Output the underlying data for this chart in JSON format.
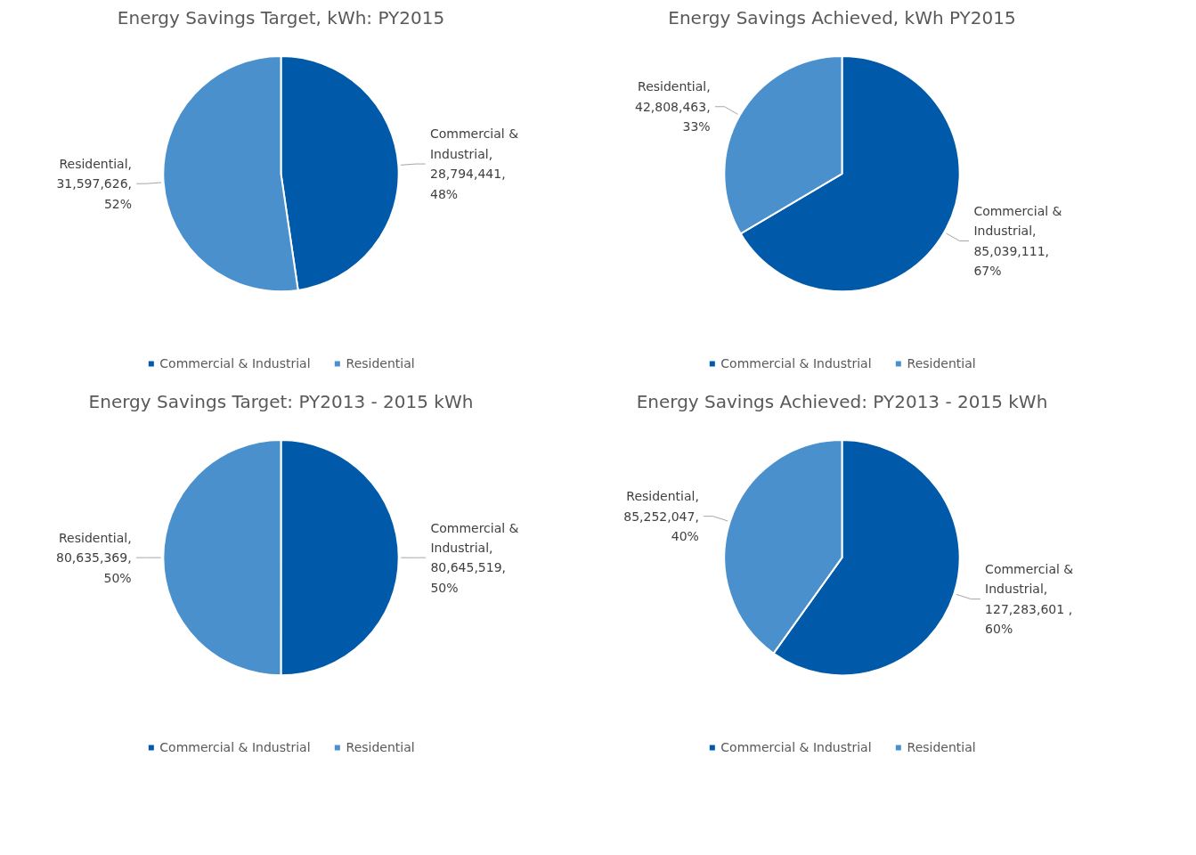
{
  "chart_data": [
    {
      "type": "pie",
      "title": "Energy Savings Target, kWh: PY2015",
      "categories": [
        "Commercial & Industrial",
        "Residential"
      ],
      "values": [
        28794441,
        31597626
      ],
      "colors": [
        "#005aa9",
        "#4a90cd"
      ],
      "value_labels": [
        "Commercial & Industrial, 28,794,441, 48%",
        "Residential, 31,597,626, 52%"
      ],
      "legend": "bottom"
    },
    {
      "type": "pie",
      "title": "Energy Savings Achieved, kWh PY2015",
      "categories": [
        "Commercial & Industrial",
        "Residential"
      ],
      "values": [
        85039111,
        42808463
      ],
      "colors": [
        "#005aa9",
        "#4a90cd"
      ],
      "value_labels": [
        "Commercial & Industrial, 85,039,111, 67%",
        "Residential, 42,808,463, 33%"
      ],
      "legend": "bottom"
    },
    {
      "type": "pie",
      "title": "Energy Savings Target: PY2013 - 2015 kWh",
      "categories": [
        "Commercial & Industrial",
        "Residential"
      ],
      "values": [
        80645519,
        80635369
      ],
      "colors": [
        "#005aa9",
        "#4a90cd"
      ],
      "value_labels": [
        "Commercial & Industrial, 80,645,519, 50%",
        "Residential, 80,635,369, 50%"
      ],
      "legend": "bottom"
    },
    {
      "type": "pie",
      "title": "Energy Savings Achieved: PY2013 - 2015 kWh",
      "categories": [
        "Commercial & Industrial",
        "Residential"
      ],
      "values": [
        127283601,
        85252047
      ],
      "colors": [
        "#005aa9",
        "#4a90cd"
      ],
      "value_labels": [
        "Commercial & Industrial, 127,283,601 , 60%",
        "Residential, 85,252,047, 40%"
      ],
      "legend": "bottom"
    }
  ]
}
